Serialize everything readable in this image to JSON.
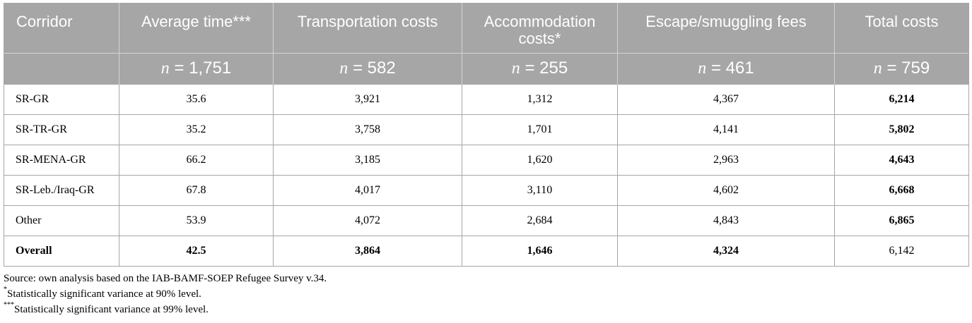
{
  "table": {
    "headers": [
      "Corridor",
      "Average time***",
      "Transportation costs",
      "Accommodation costs*",
      "Escape/smuggling fees",
      "Total costs"
    ],
    "n_row": [
      "",
      "= 1,751",
      "= 582",
      "= 255",
      "= 461",
      "= 759"
    ],
    "n_symbol": "n",
    "rows": [
      [
        "SR-GR",
        "35.6",
        "3,921",
        "1,312",
        "4,367",
        "6,214"
      ],
      [
        "SR-TR-GR",
        "35.2",
        "3,758",
        "1,701",
        "4,141",
        "5,802"
      ],
      [
        "SR-MENA-GR",
        "66.2",
        "3,185",
        "1,620",
        "2,963",
        "4,643"
      ],
      [
        "SR-Leb./Iraq-GR",
        "67.8",
        "4,017",
        "3,110",
        "4,602",
        "6,668"
      ],
      [
        "Other",
        "53.9",
        "4,072",
        "2,684",
        "4,843",
        "6,865"
      ],
      [
        "Overall",
        "42.5",
        "3,864",
        "1,646",
        "4,324",
        "6,142"
      ]
    ]
  },
  "notes": {
    "source": "Source: own analysis based on the IAB-BAMF-SOEP Refugee Survey v.34.",
    "note1_mark": "*",
    "note1": "Statistically significant variance at 90% level.",
    "note2_mark": "***",
    "note2": "Statistically significant variance at 99% level."
  }
}
